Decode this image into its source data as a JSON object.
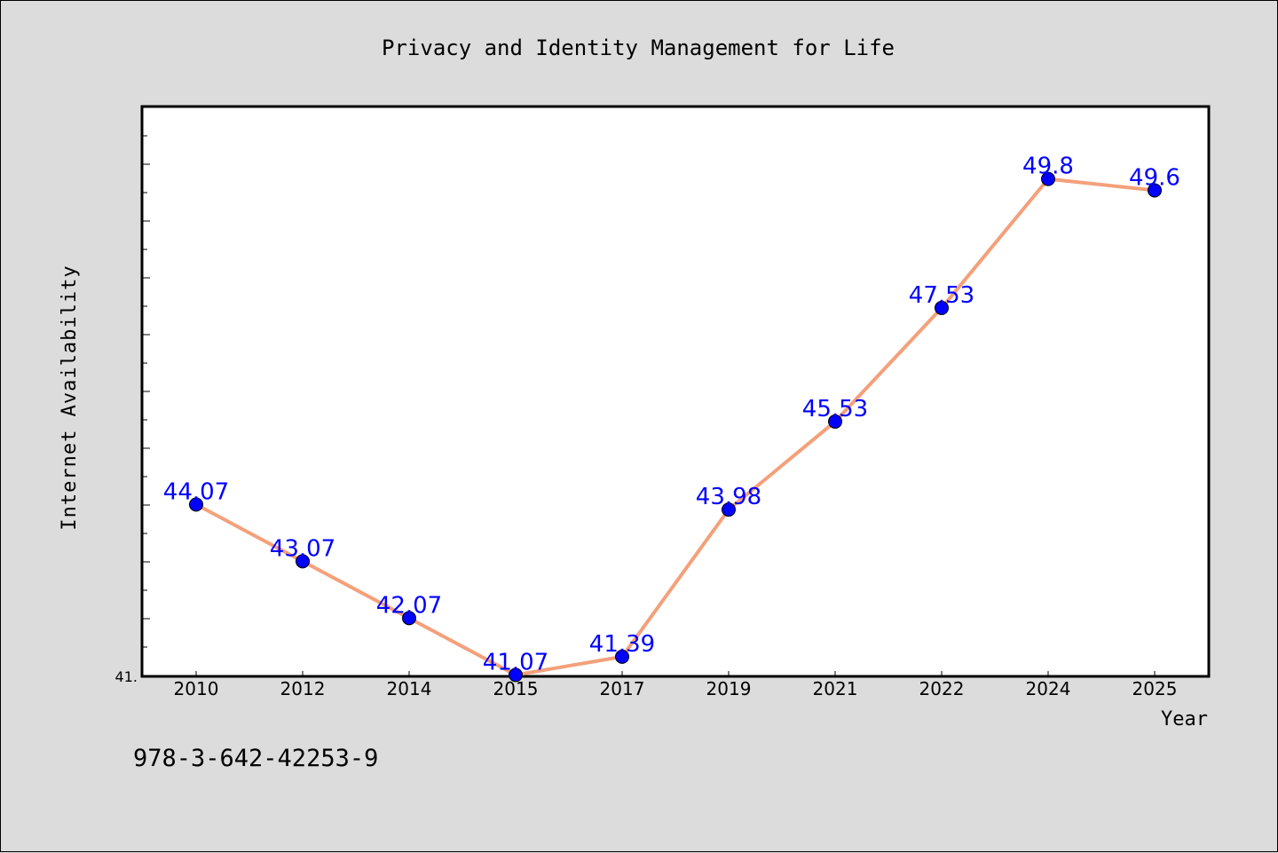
{
  "chart_data": {
    "type": "line",
    "title": "Privacy and Identity Management for Life",
    "xlabel": "Year",
    "ylabel": "Internet Availability",
    "categories": [
      "2010",
      "2012",
      "2014",
      "2015",
      "2017",
      "2019",
      "2021",
      "2022",
      "2024",
      "2025"
    ],
    "series": [
      {
        "values": [
          44.07,
          43.07,
          42.07,
          41.07,
          41.39,
          43.98,
          45.53,
          47.53,
          49.8,
          49.6
        ],
        "labels": [
          "44.07",
          "43.07",
          "42.07",
          "41.07",
          "41.39",
          "43.98",
          "45.53",
          "47.53",
          "49.8",
          "49.6"
        ]
      }
    ],
    "y_tick_labels": [
      "41."
    ],
    "ylim": [
      41.06,
      51.06
    ],
    "grid": false,
    "line_color": "#f4a07a",
    "marker_color": "#0000ff",
    "label_color": "#0000ff"
  },
  "footer_text": "978-3-642-42253-9"
}
